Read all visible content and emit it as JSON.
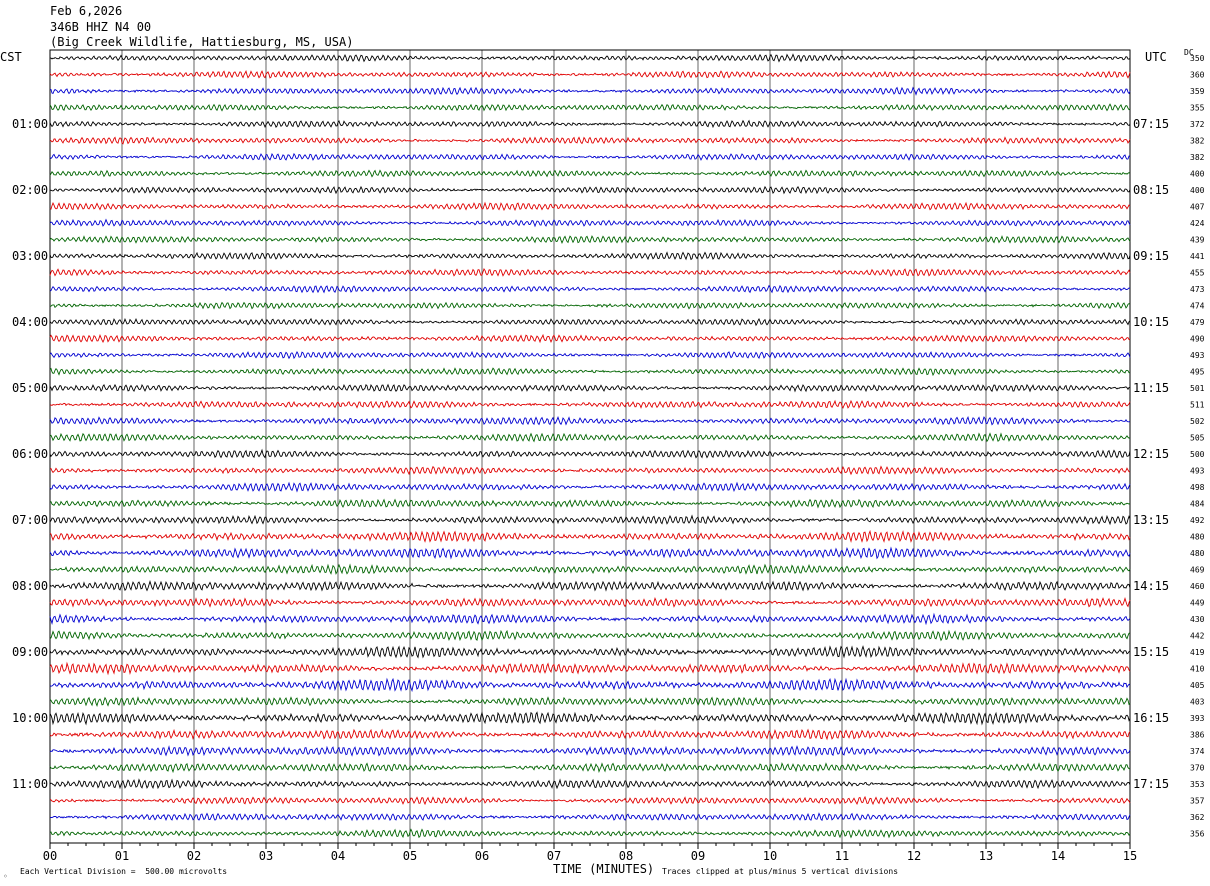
{
  "header": {
    "date": "Feb 6,2026",
    "station": "346B HHZ N4 00",
    "location": "(Big Creek Wildlife, Hattiesburg, MS, USA)"
  },
  "left_tz": "CST",
  "right_tz": "UTC",
  "dc_label": "DC",
  "footer": {
    "scale_text": "Each Vertical Division =  500.00 microvolts",
    "clip_text": "Traces clipped at plus/minus 5 vertical divisions"
  },
  "colors": {
    "trace_cycle": [
      "#000000",
      "#e00000",
      "#0000d0",
      "#006400"
    ],
    "grid": "#000000"
  },
  "chart_data": {
    "type": "line",
    "title": "346B HHZ N4 00",
    "xlabel": "TIME (MINUTES)",
    "ylabel": "",
    "x_ticks": [
      "00",
      "01",
      "02",
      "03",
      "04",
      "05",
      "06",
      "07",
      "08",
      "09",
      "10",
      "11",
      "12",
      "13",
      "14",
      "15"
    ],
    "xlim": [
      0,
      15
    ],
    "left_hour_labels": [
      "01:00",
      "02:00",
      "03:00",
      "04:00",
      "05:00",
      "06:00",
      "07:00",
      "08:00",
      "09:00",
      "10:00",
      "11:00"
    ],
    "right_hour_labels": [
      "07:15",
      "08:15",
      "09:15",
      "10:15",
      "11:15",
      "12:15",
      "13:15",
      "14:15",
      "15:15",
      "16:15",
      "17:15"
    ],
    "dc_offsets": [
      350,
      360,
      359,
      355,
      372,
      382,
      382,
      400,
      400,
      407,
      424,
      439,
      441,
      455,
      473,
      474,
      479,
      490,
      493,
      495,
      501,
      511,
      502,
      505,
      500,
      493,
      498,
      484,
      492,
      480,
      480,
      469,
      460,
      449,
      430,
      442,
      419,
      410,
      405,
      403,
      393,
      386,
      374,
      370,
      353,
      357,
      362,
      356
    ],
    "trace_count": 48,
    "amplitude_per_row": [
      0.9,
      0.9,
      0.9,
      0.9,
      0.9,
      0.9,
      0.9,
      0.9,
      0.9,
      0.9,
      0.9,
      0.9,
      0.9,
      0.9,
      0.9,
      0.9,
      0.9,
      0.9,
      0.9,
      0.9,
      1.0,
      1.0,
      1.0,
      1.0,
      1.0,
      1.0,
      1.1,
      1.1,
      1.1,
      1.3,
      1.4,
      1.2,
      1.3,
      1.2,
      1.2,
      1.2,
      1.4,
      1.4,
      1.5,
      1.2,
      1.5,
      1.3,
      1.3,
      1.2,
      1.1,
      1.0,
      1.0,
      1.0
    ]
  }
}
